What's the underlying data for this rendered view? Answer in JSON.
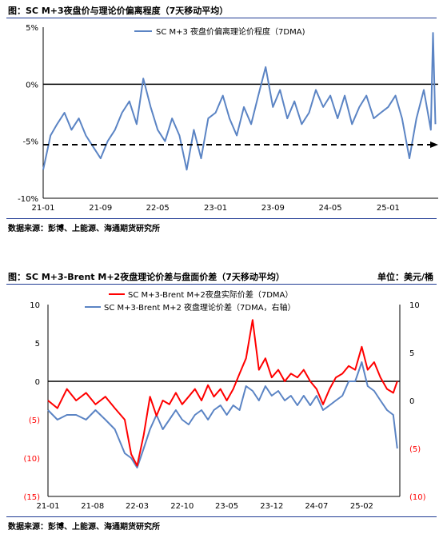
{
  "chart1_title": "图：SC M+3夜盘价与理论价偏离程度（7天移动平均）",
  "chart1_source": "数据来源：彭博、上能源、海通期货研究所",
  "chart2_title": "图：SC M+3-Brent M+2夜盘理论价差与盘面价差（7天移动平均）",
  "chart2_unit": "单位：美元/桶",
  "chart2_source": "数据来源：彭博、上能源、海通期货研究所",
  "colors": {
    "blue": "#5b84c4",
    "red": "#ff0000",
    "rule": "#1f3a93"
  },
  "chart_data": [
    {
      "type": "line",
      "legend_position": "top",
      "xlabels": [
        "21-01",
        "21-09",
        "22-05",
        "23-01",
        "23-09",
        "24-05",
        "25-01"
      ],
      "ytick_labels": [
        "5%",
        "0%",
        "-5%",
        "-10%"
      ],
      "ylim": [
        -10,
        5
      ],
      "series": [
        {
          "name": "SC M+3 夜盘价偏离理论价程度（7DMA)",
          "color": "#5b84c4",
          "points": [
            [
              "2021-01-01",
              -7.5
            ],
            [
              "2021-02-01",
              -4.5
            ],
            [
              "2021-03-01",
              -3.5
            ],
            [
              "2021-04-01",
              -2.5
            ],
            [
              "2021-05-01",
              -4.0
            ],
            [
              "2021-06-01",
              -3.0
            ],
            [
              "2021-07-01",
              -4.5
            ],
            [
              "2021-08-01",
              -5.5
            ],
            [
              "2021-09-01",
              -6.5
            ],
            [
              "2021-10-01",
              -5.0
            ],
            [
              "2021-11-01",
              -4.0
            ],
            [
              "2021-12-01",
              -2.5
            ],
            [
              "2022-01-01",
              -1.5
            ],
            [
              "2022-02-01",
              -3.5
            ],
            [
              "2022-03-01",
              0.5
            ],
            [
              "2022-04-01",
              -2.0
            ],
            [
              "2022-05-01",
              -4.0
            ],
            [
              "2022-06-01",
              -5.0
            ],
            [
              "2022-07-01",
              -3.0
            ],
            [
              "2022-08-01",
              -4.5
            ],
            [
              "2022-09-01",
              -7.5
            ],
            [
              "2022-10-01",
              -4.0
            ],
            [
              "2022-11-01",
              -6.5
            ],
            [
              "2022-12-01",
              -3.0
            ],
            [
              "2023-01-01",
              -2.5
            ],
            [
              "2023-02-01",
              -1.0
            ],
            [
              "2023-03-01",
              -3.0
            ],
            [
              "2023-04-01",
              -4.5
            ],
            [
              "2023-05-01",
              -2.0
            ],
            [
              "2023-06-01",
              -3.5
            ],
            [
              "2023-07-01",
              -1.0
            ],
            [
              "2023-08-01",
              1.5
            ],
            [
              "2023-09-01",
              -2.0
            ],
            [
              "2023-10-01",
              -0.5
            ],
            [
              "2023-11-01",
              -3.0
            ],
            [
              "2023-12-01",
              -1.5
            ],
            [
              "2024-01-01",
              -3.5
            ],
            [
              "2024-02-01",
              -2.5
            ],
            [
              "2024-03-01",
              -0.5
            ],
            [
              "2024-04-01",
              -2.0
            ],
            [
              "2024-05-01",
              -1.0
            ],
            [
              "2024-06-01",
              -3.0
            ],
            [
              "2024-07-01",
              -1.0
            ],
            [
              "2024-08-01",
              -3.5
            ],
            [
              "2024-09-01",
              -2.0
            ],
            [
              "2024-10-01",
              -1.0
            ],
            [
              "2024-11-01",
              -3.0
            ],
            [
              "2024-12-01",
              -2.5
            ],
            [
              "2025-01-01",
              -2.0
            ],
            [
              "2025-02-01",
              -1.0
            ],
            [
              "2025-03-01",
              -3.0
            ],
            [
              "2025-04-01",
              -6.5
            ],
            [
              "2025-05-01",
              -3.0
            ],
            [
              "2025-06-01",
              -0.5
            ],
            [
              "2025-07-01",
              -4.0
            ],
            [
              "2025-07-10",
              4.5
            ],
            [
              "2025-07-20",
              -3.5
            ]
          ]
        },
        {
          "name": "trend",
          "style": "dashed",
          "color": "#000000",
          "points": [
            [
              "2021-01-01",
              -5.3
            ],
            [
              "2025-08-01",
              -5.3
            ]
          ]
        }
      ]
    },
    {
      "type": "line",
      "legend_position": "top",
      "xlabels": [
        "21-01",
        "21-08",
        "22-03",
        "22-10",
        "23-05",
        "23-12",
        "24-07",
        "25-02"
      ],
      "ytick_labels_left": [
        "10",
        "5",
        "0",
        "(5)",
        "(10)",
        "(15)"
      ],
      "ytick_labels_right": [
        "10",
        "5",
        "0",
        "(5)",
        "(10)"
      ],
      "ylim_left": [
        -15,
        10
      ],
      "ylim_right": [
        -10,
        10
      ],
      "series": [
        {
          "name": "SC M+3-Brent M+2夜盘实际价差（7DMA）",
          "color": "#ff0000",
          "axis": "left",
          "points": [
            [
              "2021-01-01",
              -2.5
            ],
            [
              "2021-02-15",
              -3.5
            ],
            [
              "2021-04-01",
              -1.0
            ],
            [
              "2021-05-15",
              -2.5
            ],
            [
              "2021-07-01",
              -1.5
            ],
            [
              "2021-08-15",
              -3.0
            ],
            [
              "2021-10-01",
              -2.0
            ],
            [
              "2021-11-15",
              -3.5
            ],
            [
              "2022-01-01",
              -5.0
            ],
            [
              "2022-02-01",
              -9.5
            ],
            [
              "2022-03-01",
              -11.0
            ],
            [
              "2022-04-01",
              -7.0
            ],
            [
              "2022-05-01",
              -2.0
            ],
            [
              "2022-06-01",
              -4.5
            ],
            [
              "2022-07-01",
              -2.5
            ],
            [
              "2022-08-01",
              -3.0
            ],
            [
              "2022-09-01",
              -1.5
            ],
            [
              "2022-10-01",
              -3.0
            ],
            [
              "2022-11-01",
              -2.0
            ],
            [
              "2022-12-01",
              -1.0
            ],
            [
              "2023-01-01",
              -2.5
            ],
            [
              "2023-02-01",
              -0.5
            ],
            [
              "2023-03-01",
              -2.0
            ],
            [
              "2023-04-01",
              -1.0
            ],
            [
              "2023-05-01",
              -2.5
            ],
            [
              "2023-06-01",
              -1.0
            ],
            [
              "2023-07-01",
              1.0
            ],
            [
              "2023-08-01",
              3.0
            ],
            [
              "2023-09-01",
              8.0
            ],
            [
              "2023-10-01",
              1.5
            ],
            [
              "2023-11-01",
              3.0
            ],
            [
              "2023-12-01",
              0.5
            ],
            [
              "2024-01-01",
              1.5
            ],
            [
              "2024-02-01",
              0.0
            ],
            [
              "2024-03-01",
              1.0
            ],
            [
              "2024-04-01",
              0.5
            ],
            [
              "2024-05-01",
              1.5
            ],
            [
              "2024-06-01",
              0.0
            ],
            [
              "2024-07-01",
              -1.0
            ],
            [
              "2024-08-01",
              -3.0
            ],
            [
              "2024-09-01",
              -1.0
            ],
            [
              "2024-10-01",
              0.5
            ],
            [
              "2024-11-01",
              1.0
            ],
            [
              "2024-12-01",
              2.0
            ],
            [
              "2025-01-01",
              1.5
            ],
            [
              "2025-02-01",
              4.5
            ],
            [
              "2025-03-01",
              1.5
            ],
            [
              "2025-04-01",
              2.5
            ],
            [
              "2025-05-01",
              0.5
            ],
            [
              "2025-06-01",
              -1.0
            ],
            [
              "2025-07-01",
              -1.5
            ],
            [
              "2025-07-20",
              0.0
            ]
          ]
        },
        {
          "name": "SC M+3-Brent M+2 夜盘理论价差（7DMA，右轴）",
          "color": "#5b84c4",
          "axis": "right",
          "points": [
            [
              "2021-01-01",
              -1.0
            ],
            [
              "2021-02-15",
              -2.0
            ],
            [
              "2021-04-01",
              -1.5
            ],
            [
              "2021-05-15",
              -1.5
            ],
            [
              "2021-07-01",
              -2.0
            ],
            [
              "2021-08-15",
              -1.0
            ],
            [
              "2021-10-01",
              -2.0
            ],
            [
              "2021-11-15",
              -3.0
            ],
            [
              "2022-01-01",
              -5.5
            ],
            [
              "2022-02-01",
              -6.0
            ],
            [
              "2022-03-01",
              -7.0
            ],
            [
              "2022-04-01",
              -5.0
            ],
            [
              "2022-05-01",
              -3.0
            ],
            [
              "2022-06-01",
              -1.5
            ],
            [
              "2022-07-01",
              -3.0
            ],
            [
              "2022-08-01",
              -2.0
            ],
            [
              "2022-09-01",
              -1.0
            ],
            [
              "2022-10-01",
              -2.0
            ],
            [
              "2022-11-01",
              -2.5
            ],
            [
              "2022-12-01",
              -1.5
            ],
            [
              "2023-01-01",
              -1.0
            ],
            [
              "2023-02-01",
              -2.0
            ],
            [
              "2023-03-01",
              -1.0
            ],
            [
              "2023-04-01",
              -0.5
            ],
            [
              "2023-05-01",
              -1.5
            ],
            [
              "2023-06-01",
              -0.5
            ],
            [
              "2023-07-01",
              -1.0
            ],
            [
              "2023-08-01",
              1.5
            ],
            [
              "2023-09-01",
              1.0
            ],
            [
              "2023-10-01",
              0.0
            ],
            [
              "2023-11-01",
              1.5
            ],
            [
              "2023-12-01",
              0.5
            ],
            [
              "2024-01-01",
              1.0
            ],
            [
              "2024-02-01",
              0.0
            ],
            [
              "2024-03-01",
              0.5
            ],
            [
              "2024-04-01",
              -0.5
            ],
            [
              "2024-05-01",
              0.5
            ],
            [
              "2024-06-01",
              -0.5
            ],
            [
              "2024-07-01",
              0.5
            ],
            [
              "2024-08-01",
              -1.0
            ],
            [
              "2024-09-01",
              -0.5
            ],
            [
              "2024-10-01",
              0.0
            ],
            [
              "2024-11-01",
              0.5
            ],
            [
              "2024-12-01",
              2.0
            ],
            [
              "2025-01-01",
              2.0
            ],
            [
              "2025-02-01",
              4.0
            ],
            [
              "2025-03-01",
              1.5
            ],
            [
              "2025-04-01",
              1.0
            ],
            [
              "2025-05-01",
              0.0
            ],
            [
              "2025-06-01",
              -1.0
            ],
            [
              "2025-07-01",
              -1.5
            ],
            [
              "2025-07-20",
              -5.0
            ]
          ]
        }
      ]
    }
  ]
}
